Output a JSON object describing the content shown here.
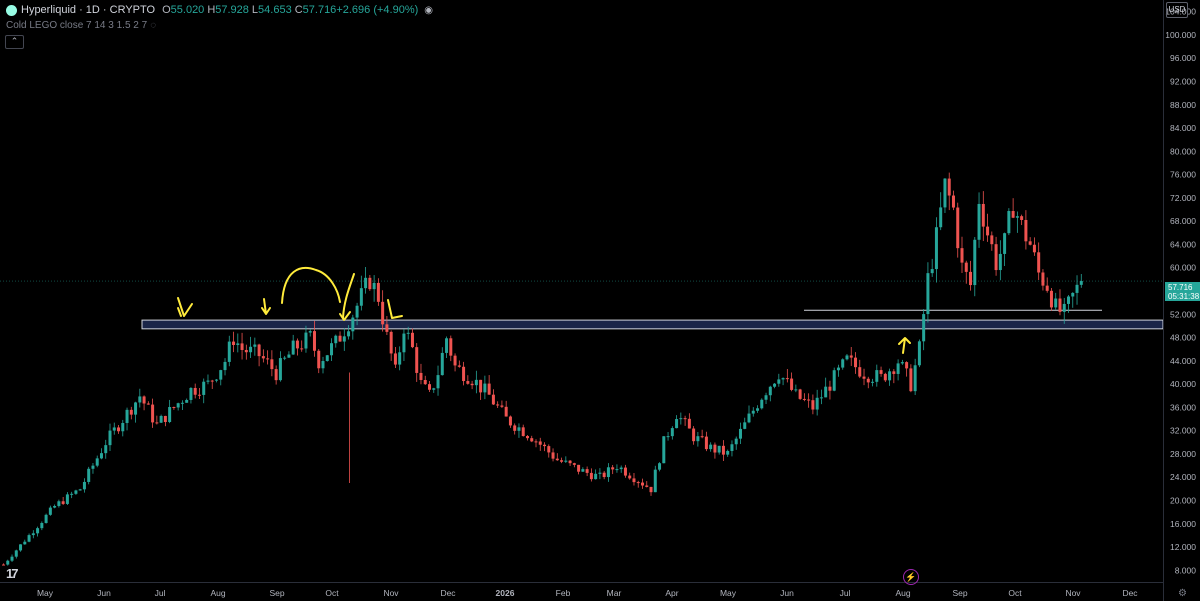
{
  "header": {
    "symbol_title": "Hyperliquid · 1D · CRYPTO",
    "ohlc": [
      {
        "k": "O",
        "v": "55.020"
      },
      {
        "k": "H",
        "v": "57.928"
      },
      {
        "k": "L",
        "v": "54.653"
      },
      {
        "k": "C",
        "v": "57.716"
      },
      {
        "k": "",
        "v": "+2.696 (+4.90%)"
      }
    ],
    "indicator_label": "Cold LEGO close 7 14 3 1.5 2 7",
    "currency": "USD",
    "last_price": "57.716",
    "countdown": "05:31:38",
    "tv_logo": "17"
  },
  "colors": {
    "up": "#26a69a",
    "down": "#ef5350",
    "zone_fill": "#1a2548",
    "zone_border": "#d1d4dc",
    "annotation": "#ffeb3b"
  },
  "chart_data": {
    "type": "candlestick",
    "title": "Hyperliquid · 1D · CRYPTO",
    "y_tick_labels": [
      "8.000",
      "12.000",
      "16.000",
      "20.000",
      "24.000",
      "28.000",
      "32.000",
      "36.000",
      "40.000",
      "44.000",
      "48.000",
      "52.000",
      "56.000",
      "60.000",
      "64.000",
      "68.000",
      "72.000",
      "76.000",
      "80.000",
      "84.000",
      "88.000",
      "92.000",
      "96.000",
      "100.000",
      "104.000"
    ],
    "x_tick_labels": [
      "May",
      "Jun",
      "Jul",
      "Aug",
      "Sep",
      "Oct",
      "Nov",
      "Dec",
      "2026",
      "Feb",
      "Mar",
      "Apr",
      "May",
      "Jun",
      "Jul",
      "Aug",
      "Sep",
      "Oct",
      "Nov",
      "Dec"
    ],
    "ylim": [
      6,
      106
    ],
    "close_path": [
      [
        0,
        9
      ],
      [
        6,
        14
      ],
      [
        12,
        19
      ],
      [
        18,
        22
      ],
      [
        24,
        30
      ],
      [
        30,
        36
      ],
      [
        32,
        38
      ],
      [
        36,
        33
      ],
      [
        40,
        36
      ],
      [
        44,
        39
      ],
      [
        48,
        40
      ],
      [
        52,
        44
      ],
      [
        54,
        48
      ],
      [
        56,
        46
      ],
      [
        60,
        45
      ],
      [
        64,
        42
      ],
      [
        68,
        46
      ],
      [
        72,
        48
      ],
      [
        74,
        44
      ],
      [
        78,
        47
      ],
      [
        82,
        52
      ],
      [
        84,
        55
      ],
      [
        86,
        58
      ],
      [
        88,
        55
      ],
      [
        90,
        48
      ],
      [
        92,
        42
      ],
      [
        94,
        50
      ],
      [
        96,
        46
      ],
      [
        98,
        40
      ],
      [
        100,
        38
      ],
      [
        102,
        42
      ],
      [
        104,
        48
      ],
      [
        106,
        43
      ],
      [
        110,
        41
      ],
      [
        114,
        38
      ],
      [
        118,
        34
      ],
      [
        124,
        31
      ],
      [
        130,
        27
      ],
      [
        136,
        25
      ],
      [
        140,
        24
      ],
      [
        144,
        26
      ],
      [
        148,
        24
      ],
      [
        152,
        22
      ],
      [
        155,
        30
      ],
      [
        158,
        35
      ],
      [
        162,
        31
      ],
      [
        166,
        29
      ],
      [
        170,
        28
      ],
      [
        174,
        33
      ],
      [
        178,
        38
      ],
      [
        182,
        42
      ],
      [
        186,
        38
      ],
      [
        190,
        36
      ],
      [
        194,
        40
      ],
      [
        198,
        44
      ],
      [
        202,
        42
      ],
      [
        206,
        41
      ],
      [
        210,
        44
      ],
      [
        213,
        40
      ],
      [
        215,
        46
      ],
      [
        217,
        58
      ],
      [
        219,
        65
      ],
      [
        221,
        74
      ],
      [
        223,
        70
      ],
      [
        225,
        60
      ],
      [
        227,
        57
      ],
      [
        229,
        72
      ],
      [
        231,
        66
      ],
      [
        233,
        61
      ],
      [
        235,
        64
      ],
      [
        237,
        71
      ],
      [
        239,
        67
      ],
      [
        241,
        64
      ],
      [
        243,
        59
      ],
      [
        245,
        57
      ],
      [
        247,
        53
      ],
      [
        249,
        52
      ],
      [
        251,
        55
      ],
      [
        253,
        57.7
      ]
    ],
    "last_close": 57.716,
    "support_zone": [
      49.5,
      51.0
    ],
    "support_line": 52.7
  }
}
